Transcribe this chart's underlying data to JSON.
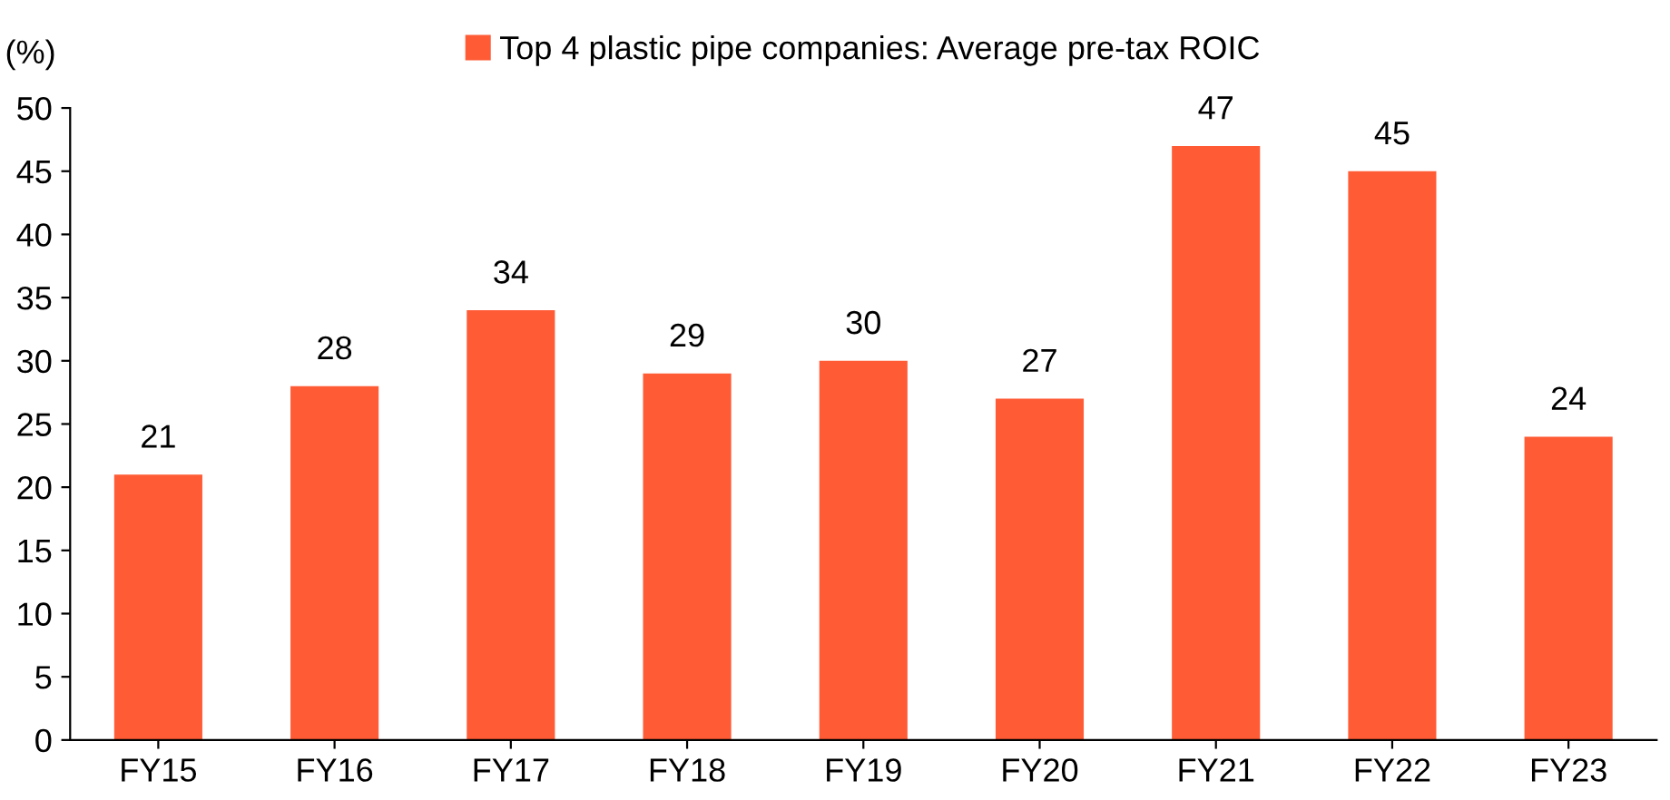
{
  "chart_data": {
    "type": "bar",
    "ylabel": "(%)",
    "categories": [
      "FY15",
      "FY16",
      "FY17",
      "FY18",
      "FY19",
      "FY20",
      "FY21",
      "FY22",
      "FY23"
    ],
    "series": [
      {
        "name": "Top 4 plastic pipe companies: Average pre-tax ROIC",
        "color": "#ff5b35",
        "values": [
          21,
          28,
          34,
          29,
          30,
          27,
          47,
          45,
          24
        ]
      }
    ],
    "ylim": [
      0,
      50
    ],
    "yticks": [
      0,
      5,
      10,
      15,
      20,
      25,
      30,
      35,
      40,
      45,
      50
    ],
    "data_labels": true,
    "grid": false,
    "legend": "top"
  }
}
